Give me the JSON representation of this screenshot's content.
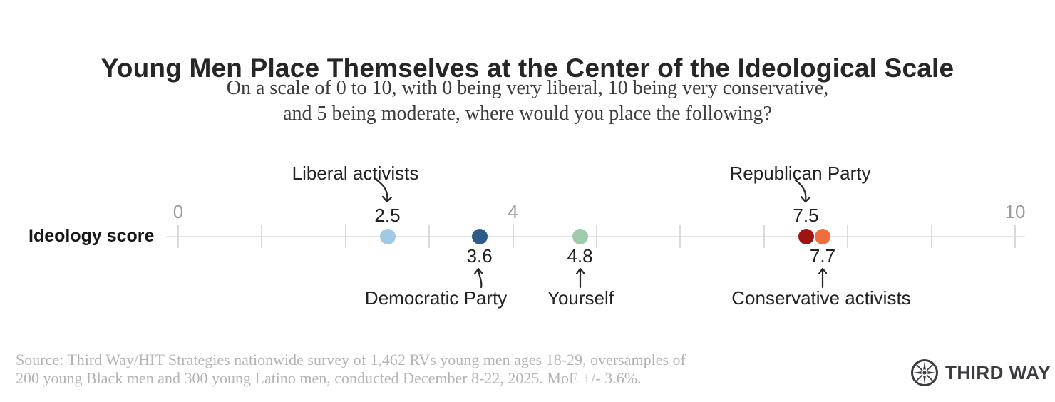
{
  "header": {
    "title": "Young Men Place Themselves at the Center of the Ideological Scale",
    "subtitle_line1": "On a scale of 0 to 10, with 0 being very liberal, 10 being very conservative,",
    "subtitle_line2": "and 5 being moderate, where would you place the following?"
  },
  "chart_data": {
    "type": "scatter",
    "row_label": "Ideology score",
    "xlim": [
      0,
      10
    ],
    "axis_ticks": [
      0,
      1,
      2,
      3,
      4,
      5,
      6,
      7,
      8,
      9,
      10
    ],
    "axis_labels": [
      {
        "value": 0,
        "label": "0"
      },
      {
        "value": 4,
        "label": "4"
      },
      {
        "value": 10,
        "label": "10"
      }
    ],
    "points": [
      {
        "name": "Liberal activists",
        "value": 2.5,
        "value_label": "2.5",
        "color": "#a1c9e6",
        "annotation_position": "top",
        "value_label_position": "above"
      },
      {
        "name": "Democratic Party",
        "value": 3.6,
        "value_label": "3.6",
        "color": "#2e5c88",
        "annotation_position": "bottom",
        "value_label_position": "below"
      },
      {
        "name": "Yourself",
        "value": 4.8,
        "value_label": "4.8",
        "color": "#a1cbad",
        "annotation_position": "bottom",
        "value_label_position": "below"
      },
      {
        "name": "Republican Party",
        "value": 7.5,
        "value_label": "7.5",
        "color": "#9f1310",
        "annotation_position": "top",
        "value_label_position": "above"
      },
      {
        "name": "Conservative activists",
        "value": 7.7,
        "value_label": "7.7",
        "color": "#ee6e3d",
        "annotation_position": "bottom",
        "value_label_position": "below"
      }
    ],
    "grid": false,
    "legend": "none"
  },
  "footer": {
    "source_line1": "Source: Third Way/HIT Strategies nationwide survey of 1,462 RVs young men ages 18-29, oversamples of",
    "source_line2": "200 young Black men and 300 young Latino men, conducted December 8-22, 2025. MoE +/- 3.6%.",
    "logo_text": "THIRD WAY"
  },
  "style": {
    "brand_color": "#3a3c3f",
    "axis_color": "#e4e4e4",
    "tick_color": "#dadada",
    "tick_label_color": "#9b9b9b",
    "text_color": "#1f1f1f",
    "muted_text_color": "#b4b4b4",
    "arrow_color": "#262626"
  }
}
